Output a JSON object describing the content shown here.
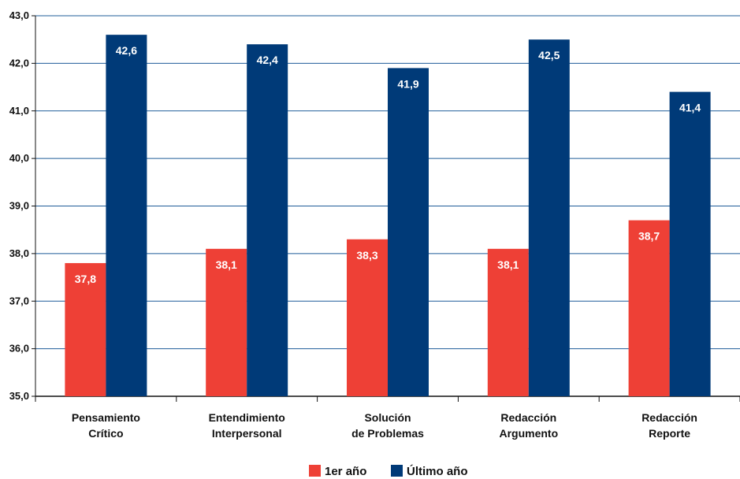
{
  "chart_data": {
    "type": "bar",
    "categories": [
      [
        "Pensamiento",
        "Crítico"
      ],
      [
        "Entendimiento",
        "Interpersonal"
      ],
      [
        "Solución",
        "de Problemas"
      ],
      [
        "Redacción",
        "Argumento"
      ],
      [
        "Redacción",
        "Reporte"
      ]
    ],
    "series": [
      {
        "name": "1er año",
        "color": "#EE4036",
        "values": [
          37.8,
          38.1,
          38.3,
          38.1,
          38.7
        ],
        "labels": [
          "37,8",
          "38,1",
          "38,3",
          "38,1",
          "38,7"
        ]
      },
      {
        "name": "Último año",
        "color": "#003A78",
        "values": [
          42.6,
          42.4,
          41.9,
          42.5,
          41.4
        ],
        "labels": [
          "42,6",
          "42,4",
          "41,9",
          "42,5",
          "41,4"
        ]
      }
    ],
    "ylim": [
      35,
      43
    ],
    "yticks": [
      35,
      36,
      37,
      38,
      39,
      40,
      41,
      42,
      43
    ],
    "ytick_labels": [
      "35,0",
      "36,0",
      "37,0",
      "38,0",
      "39,0",
      "40,0",
      "41,0",
      "42,0",
      "43,0"
    ],
    "grid": true,
    "grid_color": "#1F5C99",
    "legend": "bottom-center",
    "title": "",
    "xlabel": "",
    "ylabel": ""
  }
}
